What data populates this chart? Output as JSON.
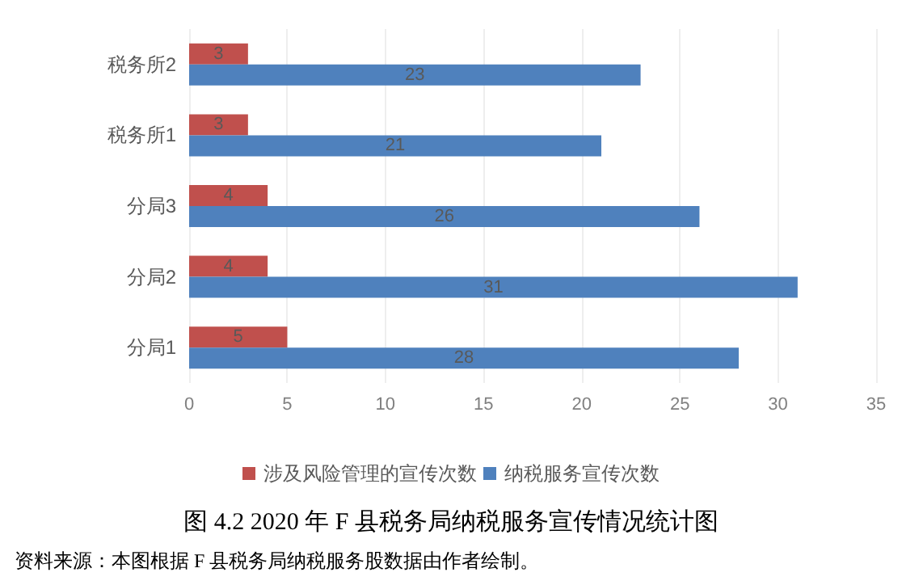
{
  "chart_data": {
    "type": "bar",
    "orientation": "horizontal",
    "title": "图 4.2 2020 年 F 县税务局纳税服务宣传情况统计图",
    "annotations": [
      "资料来源：本图根据 F 县税务局纳税服务股数据由作者绘制。"
    ],
    "categories": [
      "税务所2",
      "税务所1",
      "分局3",
      "分局2",
      "分局1"
    ],
    "series": [
      {
        "name": "涉及风险管理的宣传次数",
        "color": "#c0504d",
        "values": [
          3,
          3,
          4,
          4,
          5
        ]
      },
      {
        "name": "纳税服务宣传次数",
        "color": "#4f81bd",
        "values": [
          23,
          21,
          26,
          31,
          28
        ]
      }
    ],
    "xlim": [
      0,
      35
    ],
    "xticks": [
      0,
      5,
      10,
      15,
      20,
      25,
      30,
      35
    ],
    "grid": "x",
    "legend": "bottom",
    "data_labels": true
  }
}
